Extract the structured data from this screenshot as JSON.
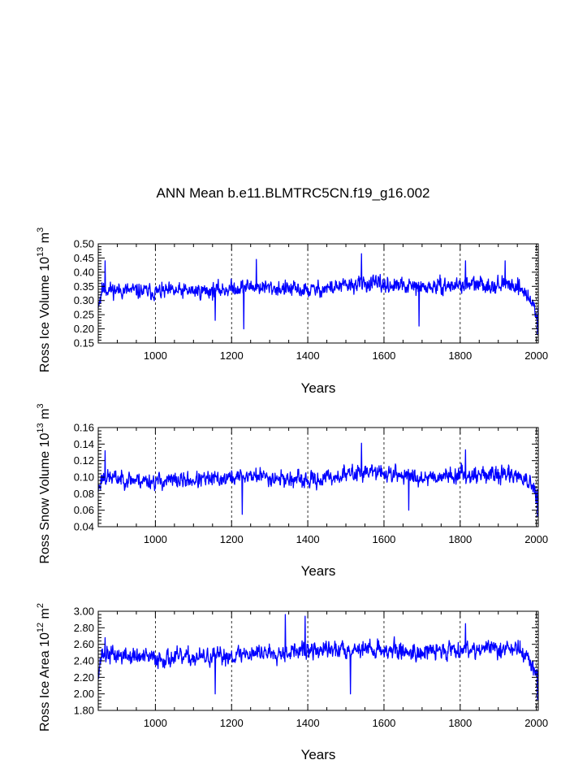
{
  "title": "ANN Mean b.e11.BLMTRC5CN.f19_g16.002",
  "colors": {
    "series": "#0000ff",
    "axis": "#000000",
    "grid": "#000000",
    "background": "#ffffff"
  },
  "chart_data": [
    {
      "type": "line",
      "id": "ice-volume",
      "xlabel": "Years",
      "ylabel": {
        "prefix": "Ross Ice Volume 10",
        "exp1": "13",
        "mid": " m",
        "exp2": "3"
      },
      "xlim": [
        850,
        2005
      ],
      "ylim": [
        0.15,
        0.5
      ],
      "xticks": [
        1000,
        1200,
        1400,
        1600,
        1800,
        2000
      ],
      "xtick_labels": [
        "1000",
        "1200",
        "1400",
        "1600",
        "1800",
        "2000"
      ],
      "yticks": [
        0.15,
        0.2,
        0.25,
        0.3,
        0.35,
        0.4,
        0.45,
        0.5
      ],
      "ytick_labels": [
        "0.15",
        "0.20",
        "0.25",
        "0.30",
        "0.35",
        "0.40",
        "0.45",
        "0.50"
      ],
      "grid_x": true,
      "series": [
        {
          "name": "Ross Ice Volume",
          "color": "#0000ff",
          "seed": 11,
          "trend": [
            [
              850,
              0.29
            ],
            [
              860,
              0.34
            ],
            [
              1000,
              0.33
            ],
            [
              1150,
              0.335
            ],
            [
              1250,
              0.35
            ],
            [
              1400,
              0.335
            ],
            [
              1550,
              0.36
            ],
            [
              1700,
              0.345
            ],
            [
              1800,
              0.355
            ],
            [
              1950,
              0.355
            ],
            [
              1975,
              0.32
            ],
            [
              2005,
              0.25
            ]
          ],
          "noise": 0.028,
          "extremes": [
            [
              856,
              0.29
            ],
            [
              868,
              0.44
            ],
            [
              1157,
              0.23
            ],
            [
              1232,
              0.2
            ],
            [
              1265,
              0.445
            ],
            [
              1541,
              0.465
            ],
            [
              1814,
              0.44
            ],
            [
              1918,
              0.44
            ],
            [
              1692,
              0.21
            ],
            [
              2003,
              0.18
            ]
          ]
        }
      ]
    },
    {
      "type": "line",
      "id": "snow-volume",
      "xlabel": "Years",
      "ylabel": {
        "prefix": "Ross Snow Volume 10",
        "exp1": "13",
        "mid": " m",
        "exp2": "3"
      },
      "xlim": [
        850,
        2005
      ],
      "ylim": [
        0.04,
        0.16
      ],
      "xticks": [
        1000,
        1200,
        1400,
        1600,
        1800,
        2000
      ],
      "xtick_labels": [
        "1000",
        "1200",
        "1400",
        "1600",
        "1800",
        "2000"
      ],
      "yticks": [
        0.04,
        0.06,
        0.08,
        0.1,
        0.12,
        0.14,
        0.16
      ],
      "ytick_labels": [
        "0.04",
        "0.06",
        "0.08",
        "0.10",
        "0.12",
        "0.14",
        "0.16"
      ],
      "grid_x": true,
      "series": [
        {
          "name": "Ross Snow Volume",
          "color": "#0000ff",
          "seed": 23,
          "trend": [
            [
              850,
              0.085
            ],
            [
              860,
              0.1
            ],
            [
              1000,
              0.095
            ],
            [
              1150,
              0.097
            ],
            [
              1260,
              0.102
            ],
            [
              1400,
              0.095
            ],
            [
              1550,
              0.107
            ],
            [
              1700,
              0.1
            ],
            [
              1800,
              0.103
            ],
            [
              1950,
              0.103
            ],
            [
              1975,
              0.095
            ],
            [
              2005,
              0.075
            ]
          ],
          "noise": 0.01,
          "extremes": [
            [
              868,
              0.132
            ],
            [
              1228,
              0.055
            ],
            [
              1541,
              0.141
            ],
            [
              1814,
              0.133
            ],
            [
              1665,
              0.06
            ],
            [
              2003,
              0.052
            ]
          ]
        }
      ]
    },
    {
      "type": "line",
      "id": "ice-area",
      "xlabel": "Years",
      "ylabel": {
        "prefix": "Ross Ice Area 10",
        "exp1": "12",
        "mid": " m",
        "exp2": "2"
      },
      "xlim": [
        850,
        2005
      ],
      "ylim": [
        1.8,
        3.0
      ],
      "xticks": [
        1000,
        1200,
        1400,
        1600,
        1800,
        2000
      ],
      "xtick_labels": [
        "1000",
        "1200",
        "1400",
        "1600",
        "1800",
        "2000"
      ],
      "yticks": [
        1.8,
        2.0,
        2.2,
        2.4,
        2.6,
        2.8,
        3.0
      ],
      "ytick_labels": [
        "1.80",
        "2.00",
        "2.20",
        "2.40",
        "2.60",
        "2.80",
        "3.00"
      ],
      "grid_x": true,
      "series": [
        {
          "name": "Ross Ice Area",
          "color": "#0000ff",
          "seed": 37,
          "trend": [
            [
              850,
              2.3
            ],
            [
              860,
              2.48
            ],
            [
              1000,
              2.43
            ],
            [
              1150,
              2.44
            ],
            [
              1260,
              2.5
            ],
            [
              1400,
              2.52
            ],
            [
              1550,
              2.55
            ],
            [
              1700,
              2.5
            ],
            [
              1800,
              2.55
            ],
            [
              1950,
              2.55
            ],
            [
              1975,
              2.45
            ],
            [
              2005,
              2.2
            ]
          ],
          "noise": 0.11,
          "extremes": [
            [
              868,
              2.68
            ],
            [
              1157,
              2.0
            ],
            [
              1341,
              2.96
            ],
            [
              1393,
              2.94
            ],
            [
              1512,
              2.0
            ],
            [
              1814,
              2.85
            ],
            [
              2003,
              1.93
            ]
          ]
        }
      ]
    }
  ]
}
